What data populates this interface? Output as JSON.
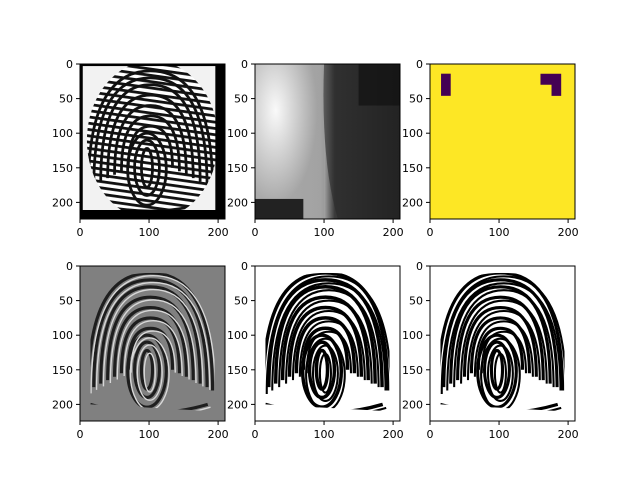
{
  "chart_data": [
    {
      "type": "image",
      "panel": "fingerprint-original",
      "x_ticks": [
        0,
        100,
        200
      ],
      "y_ticks": [
        0,
        50,
        100,
        150,
        200
      ],
      "x_range": [
        0,
        210
      ],
      "y_range": [
        0,
        224
      ],
      "colormap": "gray"
    },
    {
      "type": "image",
      "panel": "orientation-field",
      "x_ticks": [
        0,
        100,
        200
      ],
      "y_ticks": [
        0,
        50,
        100,
        150,
        200
      ],
      "x_range": [
        0,
        210
      ],
      "y_range": [
        0,
        224
      ],
      "colormap": "gray"
    },
    {
      "type": "image",
      "panel": "mask",
      "x_ticks": [
        0,
        100,
        200
      ],
      "y_ticks": [
        0,
        50,
        100,
        150,
        200
      ],
      "x_range": [
        0,
        210
      ],
      "y_range": [
        0,
        224
      ],
      "colormap": "viridis",
      "colors": {
        "background": "#fde725",
        "region": "#440154"
      }
    },
    {
      "type": "image",
      "panel": "gabor-filtered",
      "x_ticks": [
        0,
        100,
        200
      ],
      "y_ticks": [
        0,
        50,
        100,
        150,
        200
      ],
      "x_range": [
        0,
        210
      ],
      "y_range": [
        0,
        224
      ],
      "colormap": "gray"
    },
    {
      "type": "image",
      "panel": "binarized",
      "x_ticks": [
        0,
        100,
        200
      ],
      "y_ticks": [
        0,
        50,
        100,
        150,
        200
      ],
      "x_range": [
        0,
        210
      ],
      "y_range": [
        0,
        224
      ],
      "colormap": "gray"
    },
    {
      "type": "image",
      "panel": "cleaned",
      "x_ticks": [
        0,
        100,
        200
      ],
      "y_ticks": [
        0,
        50,
        100,
        150,
        200
      ],
      "x_range": [
        0,
        210
      ],
      "y_range": [
        0,
        224
      ],
      "colormap": "gray"
    }
  ]
}
